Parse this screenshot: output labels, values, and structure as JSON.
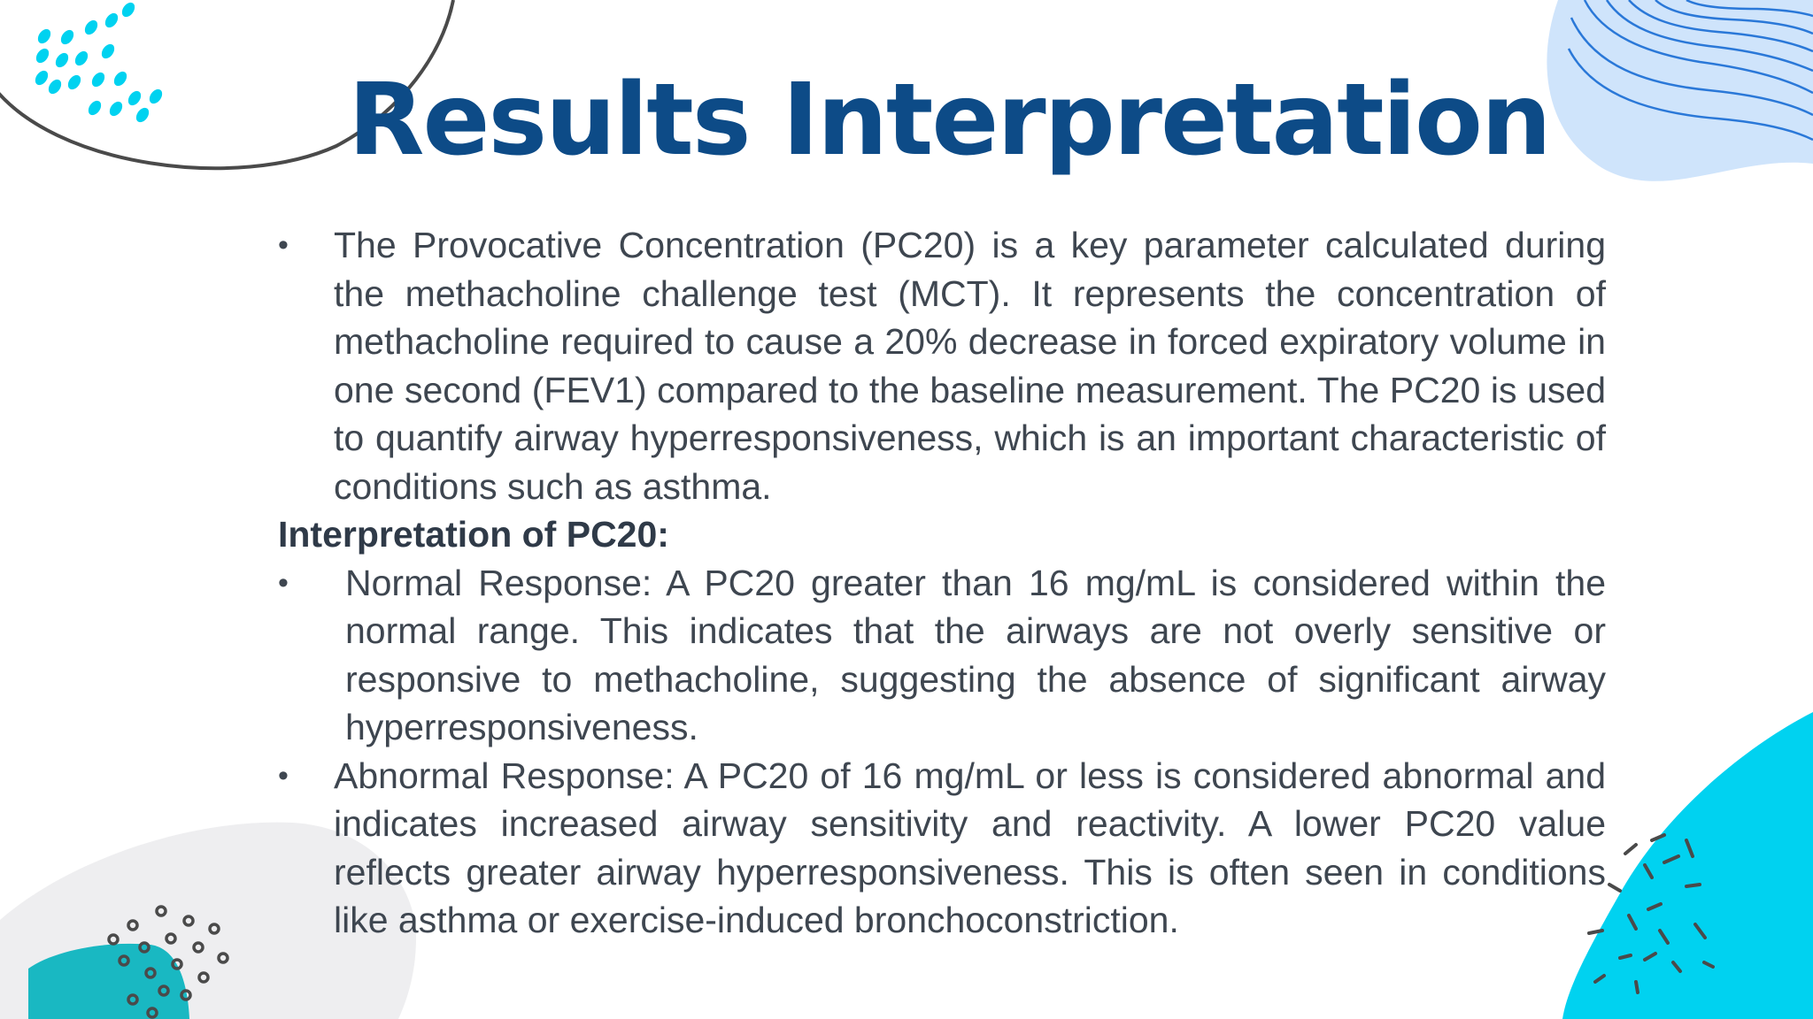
{
  "slide": {
    "title": "Results Interpretation",
    "intro_bullet": "The Provocative Concentration (PC20) is a key parameter calculated during the methacholine challenge test (MCT). It represents the concentration of methacholine required to cause a 20% decrease in forced expiratory volume in one second (FEV1) compared to the baseline measurement. The PC20 is used to quantify airway hyperresponsiveness, which is an important characteristic of conditions such as asthma.",
    "subheading": "Interpretation of PC20:",
    "bullets": [
      "Normal Response: A PC20 greater than 16 mg/mL is considered within the normal range. This indicates that the airways are not overly sensitive or responsive to methacholine, suggesting the absence of significant airway hyperresponsiveness.",
      "Abnormal Response: A PC20 of 16 mg/mL or less is considered abnormal and indicates increased airway sensitivity and reactivity. A lower PC20 value reflects greater airway hyperresponsiveness. This is often seen in conditions like asthma or exercise-induced bronchoconstriction."
    ]
  },
  "colors": {
    "title": "#0d4b87",
    "body_text": "#3e4650",
    "accent_cyan": "#00d2f0",
    "accent_teal": "#19b8c2",
    "accent_light_blue": "#cfe4fb",
    "decor_gray": "#4a4a4a"
  },
  "decorations": {
    "top_left": "curved-line-and-cyan-dots",
    "top_right": "light-blue-blob-with-contour-lines",
    "bottom_left": "gray-blob-teal-blob-circle-pattern",
    "bottom_right": "cyan-blob-with-dash-burst"
  }
}
